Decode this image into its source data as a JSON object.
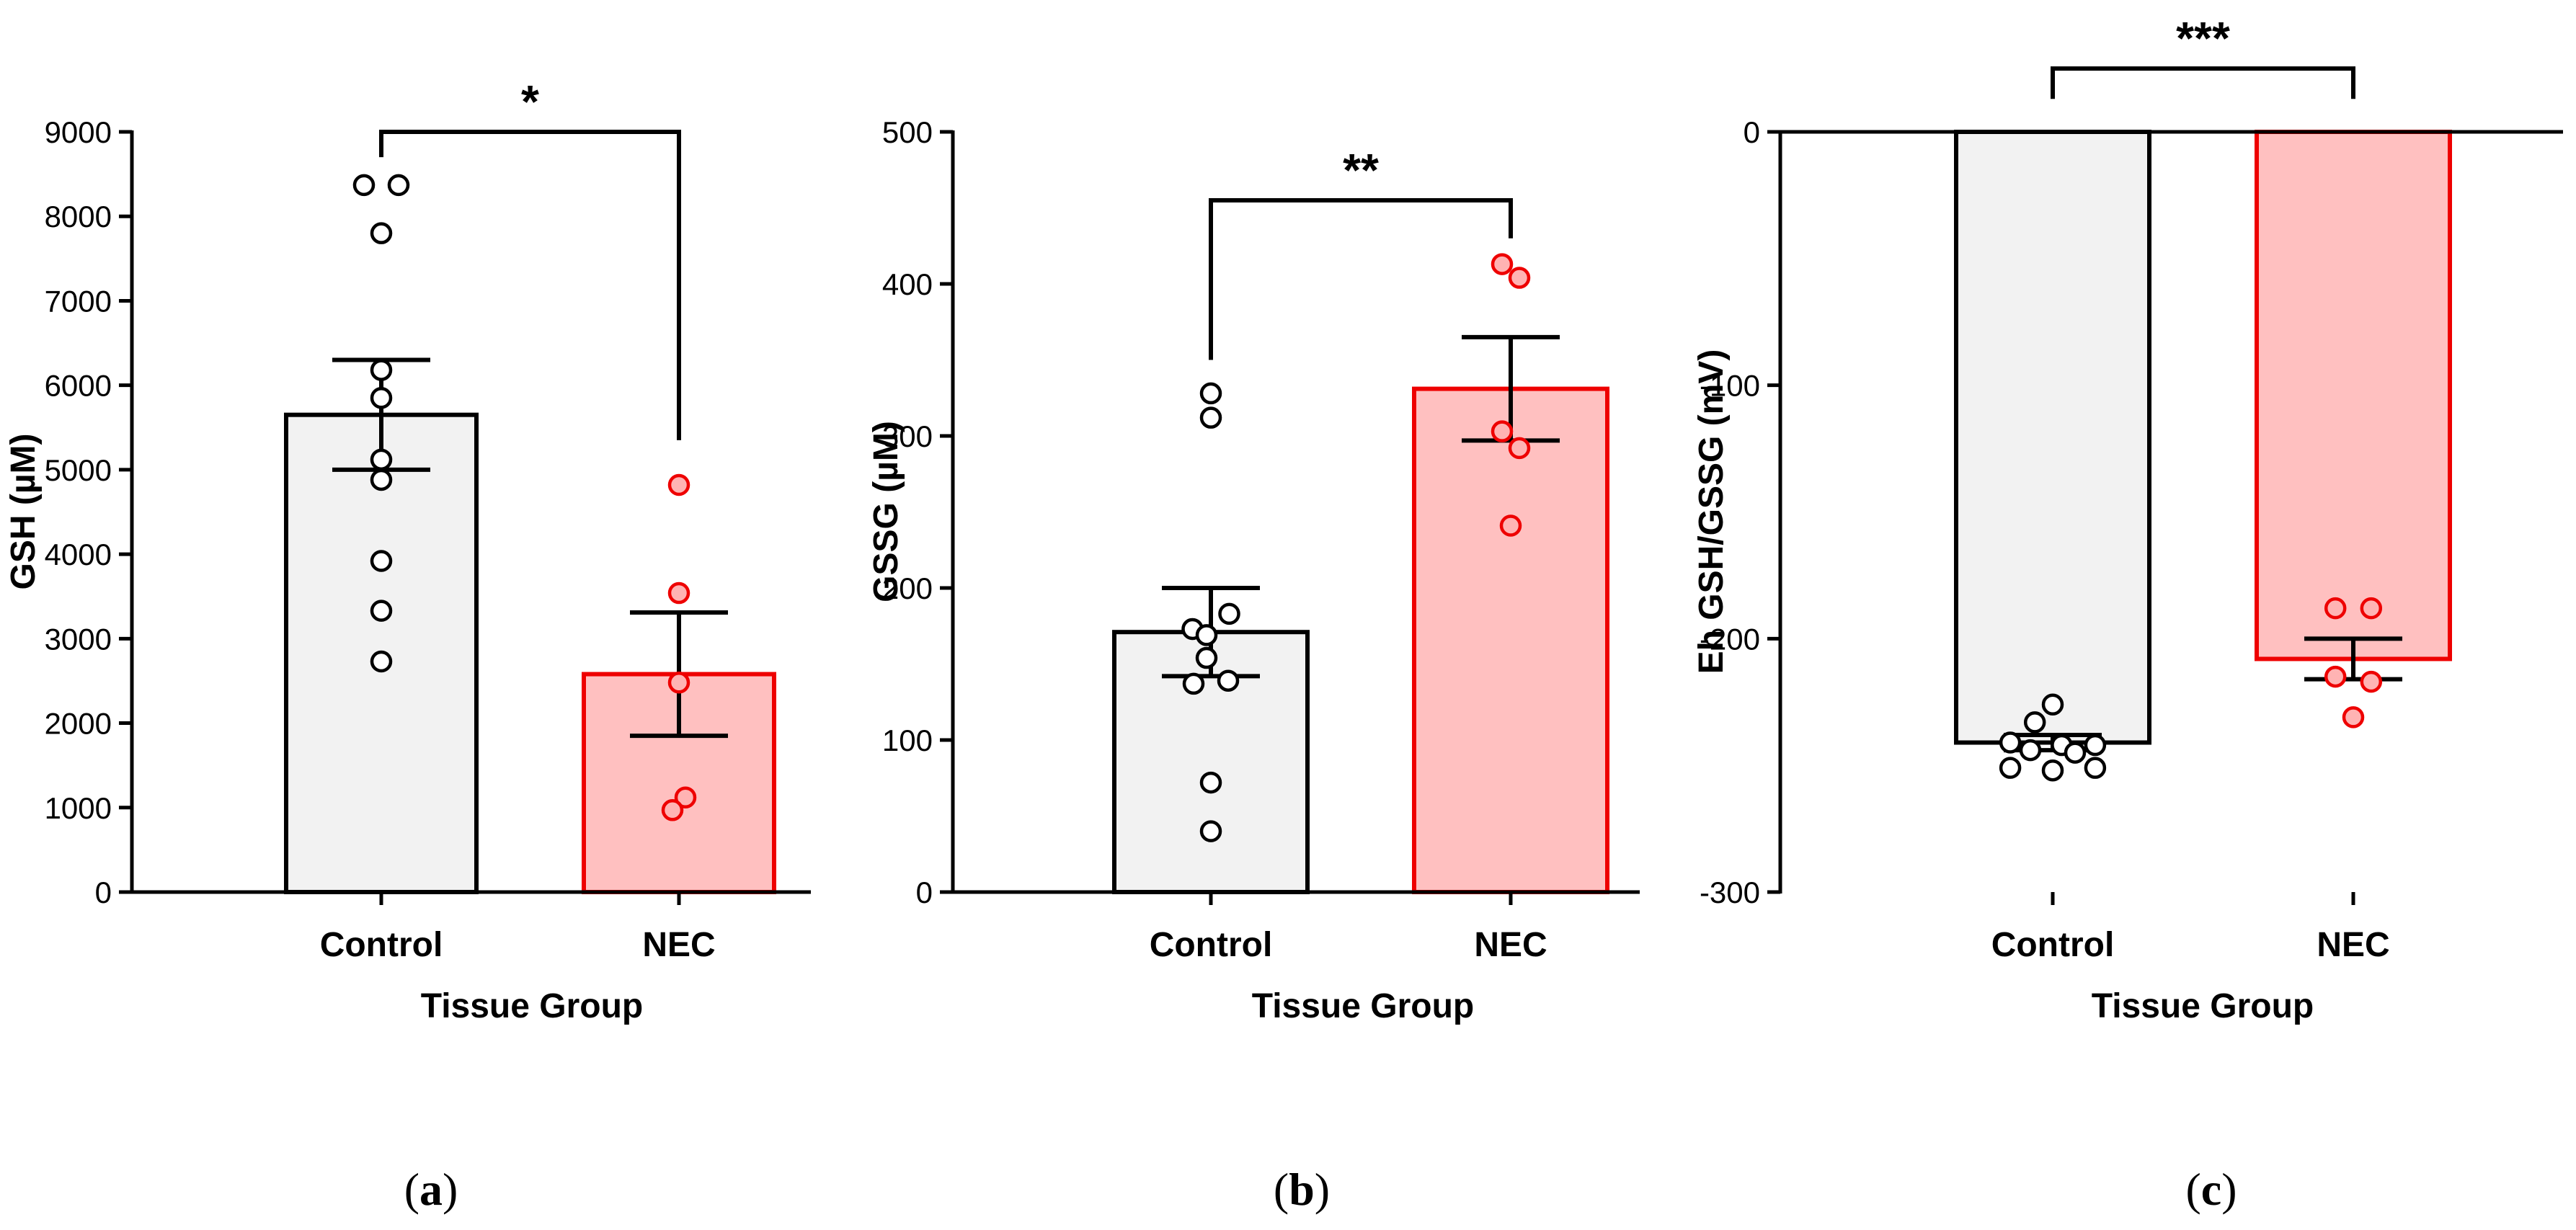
{
  "colors": {
    "control_fill": "#f2f2f2",
    "control_stroke": "#000000",
    "nec_fill": "#ffc0c0",
    "nec_stroke": "#ee0000",
    "nec_point_fill": "#ffb3b3",
    "axis": "#000000"
  },
  "chart_data": [
    {
      "type": "bar",
      "panel": "a",
      "panel_label": {
        "open": "(",
        "letter": "a",
        "close": ")"
      },
      "ylabel": "GSH  (µM)",
      "xlabel": "Tissue Group",
      "categories": [
        "Control",
        "NEC"
      ],
      "ylim": [
        0,
        9000
      ],
      "yticks": [
        0,
        1000,
        2000,
        3000,
        4000,
        5000,
        6000,
        7000,
        8000,
        9000
      ],
      "ytick_labels": [
        "0",
        "1000",
        "2000",
        "3000",
        "4000",
        "5000",
        "6000",
        "7000",
        "8000",
        "9000"
      ],
      "values": [
        5650,
        2580
      ],
      "sem": [
        650,
        730
      ],
      "points": [
        [
          8370,
          8370,
          7800,
          6180,
          5850,
          5120,
          4880,
          3920,
          3330,
          2730
        ],
        [
          4820,
          3540,
          2480,
          1120,
          970
        ]
      ],
      "significance": "*",
      "sig_bracket": {
        "left_top": 9000,
        "right_top": 9000,
        "left_bottom": 8700,
        "right_bottom": 5350
      }
    },
    {
      "type": "bar",
      "panel": "b",
      "panel_label": {
        "open": "(",
        "letter": "b",
        "close": ")"
      },
      "ylabel": "GSSG  (µM)",
      "xlabel": "Tissue Group",
      "categories": [
        "Control",
        "NEC"
      ],
      "ylim": [
        0,
        500
      ],
      "yticks": [
        0,
        100,
        200,
        300,
        400,
        500
      ],
      "ytick_labels": [
        "0",
        "100",
        "200",
        "300",
        "400",
        "500"
      ],
      "values": [
        171,
        331
      ],
      "sem": [
        29,
        34
      ],
      "points": [
        [
          328,
          312,
          183,
          173,
          169,
          154,
          139,
          137,
          72,
          40
        ],
        [
          413,
          404,
          303,
          292,
          241
        ]
      ],
      "significance": "**",
      "sig_bracket": {
        "left_top": 455,
        "right_top": 455,
        "left_bottom": 350,
        "right_bottom": 430
      }
    },
    {
      "type": "bar",
      "panel": "c",
      "panel_label": {
        "open": "(",
        "letter": "c",
        "close": ")"
      },
      "ylabel": "Eh GSH/GSSG (mV)",
      "xlabel": "Tissue Group",
      "categories": [
        "Control",
        "NEC"
      ],
      "ylim": [
        -300,
        0
      ],
      "yticks": [
        -300,
        -200,
        -100,
        0
      ],
      "ytick_labels": [
        "-300",
        "-200",
        "-100",
        "0"
      ],
      "values": [
        -241,
        -208
      ],
      "sem": [
        3,
        8
      ],
      "points": [
        [
          -226,
          -233,
          -241,
          -242,
          -242,
          -244,
          -245,
          -251,
          -251,
          -252
        ],
        [
          -188,
          -188,
          -215,
          -217,
          -231
        ]
      ],
      "significance": "***",
      "sig_bracket": {
        "left_top": 25,
        "right_top": 25,
        "left_bottom": 13,
        "right_bottom": 13
      }
    }
  ]
}
